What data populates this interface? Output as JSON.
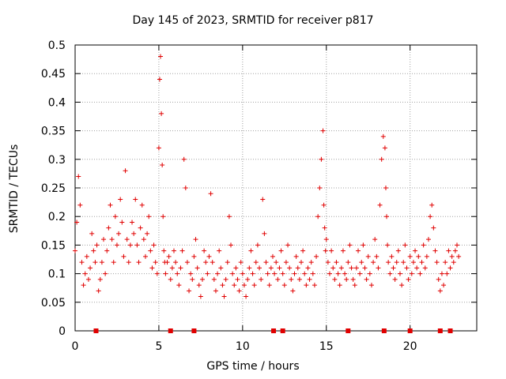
{
  "chart_data": {
    "type": "scatter",
    "title": "Day 145 of 2023, SRMTID for receiver p817",
    "xlabel": "GPS time / hours",
    "ylabel": "SRMTID / TECUs",
    "xlim": [
      0,
      23.98
    ],
    "ylim": [
      0,
      0.5
    ],
    "xticks": [
      0,
      5,
      10,
      15,
      20
    ],
    "yticks": [
      0,
      0.05,
      0.1,
      0.15,
      0.2,
      0.25,
      0.3,
      0.35,
      0.4,
      0.45,
      0.5
    ],
    "grid": true,
    "marker": "+",
    "color": "#e00000",
    "zero_markers_x": [
      1.25,
      5.7,
      7.1,
      11.85,
      12.4,
      16.3,
      18.45,
      20.0,
      21.8,
      22.4
    ],
    "series": [
      {
        "name": "p817",
        "x": [
          0.0,
          0.1,
          0.2,
          0.3,
          0.4,
          0.5,
          0.6,
          0.7,
          0.8,
          0.9,
          1.0,
          1.1,
          1.2,
          1.3,
          1.4,
          1.5,
          1.6,
          1.7,
          1.8,
          1.9,
          2.0,
          2.1,
          2.2,
          2.3,
          2.4,
          2.5,
          2.6,
          2.7,
          2.8,
          2.9,
          3.0,
          3.1,
          3.2,
          3.3,
          3.4,
          3.5,
          3.6,
          3.7,
          3.8,
          3.9,
          4.0,
          4.1,
          4.2,
          4.3,
          4.4,
          4.5,
          4.6,
          4.7,
          4.8,
          4.9,
          5.0,
          5.05,
          5.1,
          5.15,
          5.2,
          5.25,
          5.3,
          5.35,
          5.4,
          5.5,
          5.6,
          5.7,
          5.8,
          5.9,
          6.0,
          6.1,
          6.2,
          6.3,
          6.4,
          6.5,
          6.6,
          6.7,
          6.8,
          6.9,
          7.0,
          7.1,
          7.2,
          7.3,
          7.4,
          7.5,
          7.6,
          7.7,
          7.8,
          7.9,
          8.0,
          8.1,
          8.2,
          8.3,
          8.4,
          8.5,
          8.6,
          8.7,
          8.8,
          8.9,
          9.0,
          9.1,
          9.2,
          9.3,
          9.4,
          9.5,
          9.6,
          9.7,
          9.8,
          9.9,
          10.0,
          10.1,
          10.2,
          10.3,
          10.4,
          10.5,
          10.6,
          10.7,
          10.8,
          10.9,
          11.0,
          11.1,
          11.2,
          11.3,
          11.4,
          11.5,
          11.6,
          11.7,
          11.8,
          11.9,
          12.0,
          12.1,
          12.2,
          12.3,
          12.4,
          12.5,
          12.6,
          12.7,
          12.8,
          12.9,
          13.0,
          13.1,
          13.2,
          13.3,
          13.4,
          13.5,
          13.6,
          13.7,
          13.8,
          13.9,
          14.0,
          14.1,
          14.2,
          14.3,
          14.4,
          14.5,
          14.6,
          14.7,
          14.8,
          14.85,
          14.9,
          14.95,
          15.0,
          15.1,
          15.2,
          15.3,
          15.4,
          15.5,
          15.6,
          15.7,
          15.8,
          15.9,
          16.0,
          16.1,
          16.2,
          16.3,
          16.4,
          16.5,
          16.6,
          16.7,
          16.8,
          16.9,
          17.0,
          17.1,
          17.2,
          17.3,
          17.4,
          17.5,
          17.6,
          17.7,
          17.8,
          17.9,
          18.0,
          18.1,
          18.2,
          18.3,
          18.4,
          18.5,
          18.55,
          18.6,
          18.65,
          18.7,
          18.8,
          18.9,
          19.0,
          19.1,
          19.2,
          19.3,
          19.4,
          19.5,
          19.6,
          19.7,
          19.8,
          19.9,
          20.0,
          20.1,
          20.2,
          20.3,
          20.4,
          20.5,
          20.6,
          20.7,
          20.8,
          20.9,
          21.0,
          21.1,
          21.2,
          21.3,
          21.4,
          21.5,
          21.6,
          21.7,
          21.8,
          21.9,
          22.0,
          22.1,
          22.2,
          22.3,
          22.4,
          22.5,
          22.6,
          22.7,
          22.8,
          22.9
        ],
        "y": [
          0.14,
          0.19,
          0.27,
          0.22,
          0.12,
          0.08,
          0.1,
          0.13,
          0.09,
          0.11,
          0.17,
          0.14,
          0.12,
          0.15,
          0.07,
          0.09,
          0.12,
          0.16,
          0.1,
          0.14,
          0.18,
          0.22,
          0.16,
          0.12,
          0.2,
          0.15,
          0.17,
          0.23,
          0.19,
          0.13,
          0.28,
          0.16,
          0.12,
          0.15,
          0.19,
          0.17,
          0.23,
          0.15,
          0.12,
          0.18,
          0.22,
          0.16,
          0.13,
          0.17,
          0.2,
          0.14,
          0.11,
          0.15,
          0.12,
          0.1,
          0.32,
          0.44,
          0.48,
          0.38,
          0.29,
          0.2,
          0.14,
          0.12,
          0.1,
          0.12,
          0.13,
          0.09,
          0.11,
          0.14,
          0.12,
          0.1,
          0.08,
          0.11,
          0.14,
          0.3,
          0.25,
          0.12,
          0.07,
          0.1,
          0.09,
          0.13,
          0.16,
          0.11,
          0.08,
          0.06,
          0.09,
          0.14,
          0.12,
          0.1,
          0.13,
          0.24,
          0.12,
          0.09,
          0.07,
          0.1,
          0.14,
          0.11,
          0.08,
          0.06,
          0.09,
          0.12,
          0.2,
          0.15,
          0.1,
          0.08,
          0.11,
          0.09,
          0.07,
          0.12,
          0.1,
          0.08,
          0.06,
          0.09,
          0.11,
          0.14,
          0.1,
          0.08,
          0.12,
          0.15,
          0.11,
          0.09,
          0.23,
          0.17,
          0.12,
          0.1,
          0.08,
          0.11,
          0.13,
          0.1,
          0.12,
          0.09,
          0.11,
          0.14,
          0.1,
          0.08,
          0.12,
          0.15,
          0.11,
          0.09,
          0.07,
          0.1,
          0.13,
          0.11,
          0.09,
          0.12,
          0.14,
          0.1,
          0.08,
          0.11,
          0.09,
          0.12,
          0.1,
          0.08,
          0.13,
          0.2,
          0.25,
          0.3,
          0.35,
          0.22,
          0.18,
          0.14,
          0.16,
          0.12,
          0.1,
          0.14,
          0.11,
          0.09,
          0.12,
          0.1,
          0.08,
          0.11,
          0.14,
          0.1,
          0.09,
          0.12,
          0.15,
          0.11,
          0.09,
          0.08,
          0.11,
          0.14,
          0.1,
          0.12,
          0.15,
          0.11,
          0.09,
          0.13,
          0.1,
          0.08,
          0.12,
          0.16,
          0.13,
          0.11,
          0.22,
          0.3,
          0.34,
          0.32,
          0.25,
          0.2,
          0.15,
          0.12,
          0.1,
          0.13,
          0.11,
          0.09,
          0.12,
          0.14,
          0.1,
          0.08,
          0.12,
          0.15,
          0.11,
          0.09,
          0.13,
          0.1,
          0.12,
          0.14,
          0.11,
          0.13,
          0.1,
          0.12,
          0.15,
          0.11,
          0.13,
          0.16,
          0.2,
          0.22,
          0.18,
          0.14,
          0.12,
          0.09,
          0.07,
          0.1,
          0.08,
          0.12,
          0.1,
          0.14,
          0.11,
          0.13,
          0.12,
          0.14,
          0.15,
          0.13
        ]
      }
    ]
  }
}
